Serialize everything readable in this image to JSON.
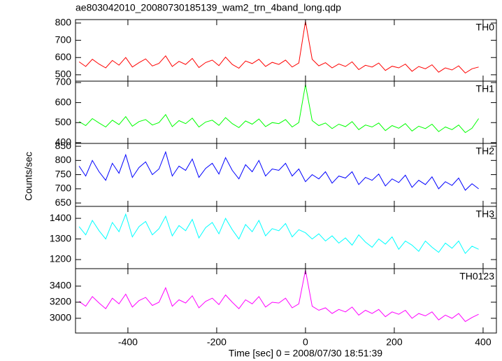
{
  "figure": {
    "title": "ae803042010_20080730185139_wam2_trn_4band_long.qdp",
    "x_label": "Time [sec] 0 = 2008/07/30 18:51:39",
    "y_label": "Counts/sec"
  },
  "chart_data": [
    {
      "type": "line",
      "label": "TH0",
      "color": "#ff0000",
      "xlim": [
        -518,
        430
      ],
      "xticks": [
        -400,
        -200,
        0,
        200,
        400
      ],
      "ylim": [
        463,
        820
      ],
      "yticks": [
        500,
        600,
        700,
        800
      ],
      "x": [
        -510,
        -495,
        -480,
        -465,
        -450,
        -435,
        -420,
        -405,
        -390,
        -375,
        -360,
        -345,
        -330,
        -315,
        -300,
        -285,
        -270,
        -255,
        -240,
        -225,
        -210,
        -195,
        -180,
        -165,
        -150,
        -135,
        -120,
        -105,
        -90,
        -75,
        -60,
        -45,
        -30,
        -15,
        0,
        15,
        30,
        45,
        60,
        75,
        90,
        105,
        120,
        135,
        150,
        165,
        180,
        195,
        210,
        225,
        240,
        255,
        270,
        285,
        300,
        315,
        330,
        345,
        360,
        375,
        390
      ],
      "values": [
        575,
        548,
        590,
        562,
        540,
        583,
        556,
        600,
        545,
        570,
        592,
        551,
        566,
        610,
        548,
        578,
        560,
        595,
        542,
        571,
        585,
        553,
        602,
        560,
        538,
        580,
        565,
        590,
        548,
        572,
        560,
        585,
        545,
        568,
        810,
        590,
        552,
        570,
        540,
        563,
        548,
        575,
        530,
        555,
        545,
        568,
        525,
        550,
        540,
        562,
        520,
        548,
        535,
        558,
        515,
        540,
        528,
        552,
        510,
        535,
        545
      ]
    },
    {
      "type": "line",
      "label": "TH1",
      "color": "#00ff00",
      "xlim": [
        -518,
        430
      ],
      "xticks": [
        -400,
        -200,
        0,
        200,
        400
      ],
      "ylim": [
        396,
        707
      ],
      "yticks": [
        400,
        500,
        600,
        700
      ],
      "x": [
        -510,
        -495,
        -480,
        -465,
        -450,
        -435,
        -420,
        -405,
        -390,
        -375,
        -360,
        -345,
        -330,
        -315,
        -300,
        -285,
        -270,
        -255,
        -240,
        -225,
        -210,
        -195,
        -180,
        -165,
        -150,
        -135,
        -120,
        -105,
        -90,
        -75,
        -60,
        -45,
        -30,
        -15,
        0,
        15,
        30,
        45,
        60,
        75,
        90,
        105,
        120,
        135,
        150,
        165,
        180,
        195,
        210,
        225,
        240,
        255,
        270,
        285,
        300,
        315,
        330,
        345,
        360,
        375,
        390
      ],
      "values": [
        505,
        485,
        520,
        498,
        478,
        512,
        490,
        530,
        482,
        505,
        515,
        488,
        500,
        540,
        480,
        510,
        495,
        522,
        478,
        503,
        512,
        486,
        525,
        495,
        475,
        508,
        492,
        518,
        480,
        500,
        495,
        515,
        478,
        500,
        690,
        510,
        485,
        498,
        470,
        492,
        480,
        505,
        465,
        488,
        478,
        498,
        460,
        485,
        472,
        495,
        458,
        482,
        470,
        492,
        455,
        478,
        465,
        488,
        450,
        472,
        520
      ]
    },
    {
      "type": "line",
      "label": "TH2",
      "color": "#0000ff",
      "xlim": [
        -518,
        430
      ],
      "xticks": [
        -400,
        -200,
        0,
        200,
        400
      ],
      "ylim": [
        638,
        860
      ],
      "yticks": [
        650,
        700,
        750,
        800,
        850
      ],
      "x": [
        -510,
        -495,
        -480,
        -465,
        -450,
        -435,
        -420,
        -405,
        -390,
        -375,
        -360,
        -345,
        -330,
        -315,
        -300,
        -285,
        -270,
        -255,
        -240,
        -225,
        -210,
        -195,
        -180,
        -165,
        -150,
        -135,
        -120,
        -105,
        -90,
        -75,
        -60,
        -45,
        -30,
        -15,
        0,
        15,
        30,
        45,
        60,
        75,
        90,
        105,
        120,
        135,
        150,
        165,
        180,
        195,
        210,
        225,
        240,
        255,
        270,
        285,
        300,
        315,
        330,
        345,
        360,
        375,
        390
      ],
      "values": [
        780,
        745,
        800,
        760,
        730,
        790,
        755,
        820,
        740,
        775,
        795,
        750,
        770,
        830,
        745,
        780,
        765,
        805,
        740,
        772,
        790,
        752,
        810,
        765,
        735,
        785,
        760,
        800,
        745,
        770,
        765,
        790,
        745,
        770,
        725,
        750,
        735,
        760,
        720,
        745,
        738,
        760,
        715,
        740,
        730,
        752,
        710,
        735,
        722,
        748,
        705,
        730,
        715,
        742,
        700,
        725,
        712,
        738,
        695,
        718,
        700
      ]
    },
    {
      "type": "line",
      "label": "TH3",
      "color": "#00ffff",
      "xlim": [
        -518,
        430
      ],
      "xticks": [
        -400,
        -200,
        0,
        200,
        400
      ],
      "ylim": [
        1156,
        1458
      ],
      "yticks": [
        1200,
        1300,
        1400
      ],
      "x": [
        -510,
        -495,
        -480,
        -465,
        -450,
        -435,
        -420,
        -405,
        -390,
        -375,
        -360,
        -345,
        -330,
        -315,
        -300,
        -285,
        -270,
        -255,
        -240,
        -225,
        -210,
        -195,
        -180,
        -165,
        -150,
        -135,
        -120,
        -105,
        -90,
        -75,
        -60,
        -45,
        -30,
        -15,
        0,
        15,
        30,
        45,
        60,
        75,
        90,
        105,
        120,
        135,
        150,
        165,
        180,
        195,
        210,
        225,
        240,
        255,
        270,
        285,
        300,
        315,
        330,
        345,
        360,
        375,
        390
      ],
      "values": [
        1360,
        1320,
        1390,
        1340,
        1300,
        1380,
        1335,
        1420,
        1310,
        1360,
        1385,
        1320,
        1350,
        1410,
        1315,
        1365,
        1340,
        1395,
        1305,
        1355,
        1380,
        1325,
        1400,
        1345,
        1300,
        1370,
        1335,
        1390,
        1315,
        1350,
        1340,
        1375,
        1310,
        1345,
        1330,
        1300,
        1325,
        1290,
        1315,
        1280,
        1305,
        1270,
        1320,
        1285,
        1260,
        1300,
        1275,
        1310,
        1250,
        1290,
        1270,
        1240,
        1290,
        1260,
        1235,
        1280,
        1255,
        1290,
        1230,
        1265,
        1250
      ]
    },
    {
      "type": "line",
      "label": "TH0123",
      "color": "#ff00ff",
      "xlim": [
        -518,
        430
      ],
      "xticks": [
        -400,
        -200,
        0,
        200,
        400
      ],
      "ylim": [
        2817,
        3617
      ],
      "yticks": [
        3000,
        3200,
        3400
      ],
      "x": [
        -510,
        -495,
        -480,
        -465,
        -450,
        -435,
        -420,
        -405,
        -390,
        -375,
        -360,
        -345,
        -330,
        -315,
        -300,
        -285,
        -270,
        -255,
        -240,
        -225,
        -210,
        -195,
        -180,
        -165,
        -150,
        -135,
        -120,
        -105,
        -90,
        -75,
        -60,
        -45,
        -30,
        -15,
        0,
        15,
        30,
        45,
        60,
        75,
        90,
        105,
        120,
        135,
        150,
        165,
        180,
        195,
        210,
        225,
        240,
        255,
        270,
        285,
        300,
        315,
        330,
        345,
        360,
        375,
        390
      ],
      "values": [
        3210,
        3150,
        3270,
        3190,
        3120,
        3250,
        3180,
        3300,
        3140,
        3220,
        3260,
        3160,
        3200,
        3380,
        3150,
        3230,
        3190,
        3280,
        3130,
        3210,
        3250,
        3170,
        3290,
        3200,
        3120,
        3230,
        3180,
        3270,
        3140,
        3200,
        3190,
        3250,
        3130,
        3180,
        3600,
        3150,
        3100,
        3130,
        3060,
        3110,
        3080,
        3140,
        3040,
        3100,
        3060,
        3110,
        3020,
        3080,
        3050,
        3100,
        3000,
        3060,
        3030,
        3080,
        2980,
        3040,
        3000,
        3060,
        2960,
        3010,
        3050
      ]
    }
  ]
}
